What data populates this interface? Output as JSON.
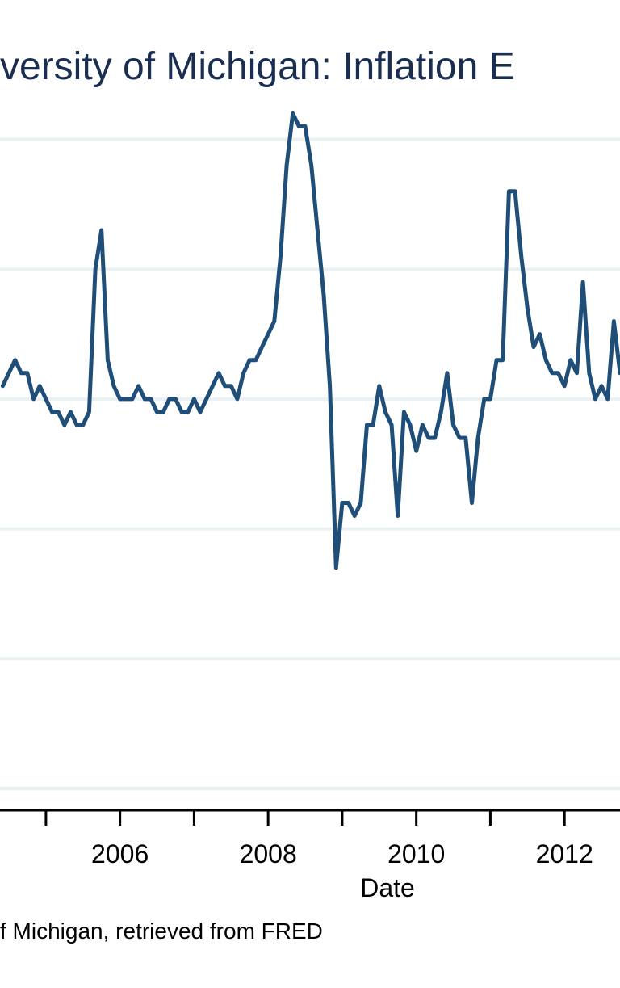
{
  "chart_data": {
    "type": "line",
    "title": "University of Michigan: Inflation Expectation",
    "visible_title_fragment": "versity of Michigan: Inflation E",
    "xlabel": "Date",
    "ylabel": "",
    "source_fragment": "f Michigan, retrieved from FRED",
    "x_tick_labels": [
      "2006",
      "2008",
      "2010",
      "2012"
    ],
    "xlim": [
      2004.38,
      2012.75
    ],
    "ylim": [
      0.5,
      5.2
    ],
    "grid": true,
    "colors": {
      "line": "#1f4e79",
      "grid": "#eaf1f3",
      "title": "#1a2e52",
      "axis": "#000000"
    },
    "series": [
      {
        "name": "",
        "x": [
          "2004-06",
          "2004-07",
          "2004-08",
          "2004-09",
          "2004-10",
          "2004-11",
          "2004-12",
          "2005-01",
          "2005-02",
          "2005-03",
          "2005-04",
          "2005-05",
          "2005-06",
          "2005-07",
          "2005-08",
          "2005-09",
          "2005-10",
          "2005-11",
          "2005-12",
          "2006-01",
          "2006-02",
          "2006-03",
          "2006-04",
          "2006-05",
          "2006-06",
          "2006-07",
          "2006-08",
          "2006-09",
          "2006-10",
          "2006-11",
          "2006-12",
          "2007-01",
          "2007-02",
          "2007-03",
          "2007-04",
          "2007-05",
          "2007-06",
          "2007-07",
          "2007-08",
          "2007-09",
          "2007-10",
          "2007-11",
          "2007-12",
          "2008-01",
          "2008-02",
          "2008-03",
          "2008-04",
          "2008-05",
          "2008-06",
          "2008-07",
          "2008-08",
          "2008-09",
          "2008-10",
          "2008-11",
          "2008-12",
          "2009-01",
          "2009-02",
          "2009-03",
          "2009-04",
          "2009-05",
          "2009-06",
          "2009-07",
          "2009-08",
          "2009-09",
          "2009-10",
          "2009-11",
          "2009-12",
          "2010-01",
          "2010-02",
          "2010-03",
          "2010-04",
          "2010-05",
          "2010-06",
          "2010-07",
          "2010-08",
          "2010-09",
          "2010-10",
          "2010-11",
          "2010-12",
          "2011-01",
          "2011-02",
          "2011-03",
          "2011-04",
          "2011-05",
          "2011-06",
          "2011-07",
          "2011-08",
          "2011-09",
          "2011-10",
          "2011-11",
          "2011-12",
          "2012-01",
          "2012-02",
          "2012-03",
          "2012-04",
          "2012-05",
          "2012-06",
          "2012-07",
          "2012-08",
          "2012-09",
          "2012-10"
        ],
        "values": [
          3.1,
          3.2,
          3.3,
          3.2,
          3.2,
          3.0,
          3.1,
          3.0,
          2.9,
          2.9,
          2.8,
          2.9,
          2.8,
          2.8,
          2.9,
          4.0,
          4.3,
          3.3,
          3.1,
          3.0,
          3.0,
          3.0,
          3.1,
          3.0,
          3.0,
          2.9,
          2.9,
          3.0,
          3.0,
          2.9,
          2.9,
          3.0,
          2.9,
          3.0,
          3.1,
          3.2,
          3.1,
          3.1,
          3.0,
          3.2,
          3.3,
          3.3,
          3.4,
          3.5,
          3.6,
          4.1,
          4.8,
          5.2,
          5.1,
          5.1,
          4.8,
          4.3,
          3.8,
          3.1,
          1.7,
          2.2,
          2.2,
          2.1,
          2.2,
          2.8,
          2.8,
          3.1,
          2.9,
          2.8,
          2.1,
          2.9,
          2.8,
          2.6,
          2.8,
          2.7,
          2.7,
          2.9,
          3.2,
          2.8,
          2.7,
          2.7,
          2.2,
          2.7,
          3.0,
          3.0,
          3.3,
          3.3,
          4.6,
          4.6,
          4.1,
          3.7,
          3.4,
          3.5,
          3.3,
          3.2,
          3.2,
          3.1,
          3.3,
          3.2,
          3.9,
          3.2,
          3.0,
          3.1,
          3.0,
          3.6,
          3.2
        ]
      }
    ]
  }
}
